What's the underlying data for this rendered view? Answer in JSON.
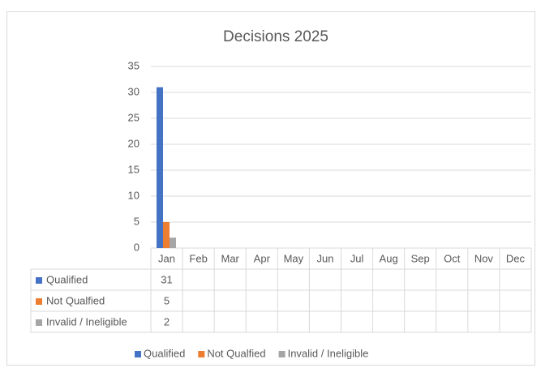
{
  "chart_data": {
    "type": "bar",
    "title": "Decisions 2025",
    "categories": [
      "Jan",
      "Feb",
      "Mar",
      "Apr",
      "May",
      "Jun",
      "Jul",
      "Aug",
      "Sep",
      "Oct",
      "Nov",
      "Dec"
    ],
    "series": [
      {
        "name": "Qualified",
        "color": "#4472c4",
        "values": [
          31,
          null,
          null,
          null,
          null,
          null,
          null,
          null,
          null,
          null,
          null,
          null
        ]
      },
      {
        "name": "Not Qualfied",
        "color": "#ed7d31",
        "values": [
          5,
          null,
          null,
          null,
          null,
          null,
          null,
          null,
          null,
          null,
          null,
          null
        ]
      },
      {
        "name": "Invalid / Ineligible",
        "color": "#a5a5a5",
        "values": [
          2,
          null,
          null,
          null,
          null,
          null,
          null,
          null,
          null,
          null,
          null,
          null
        ]
      }
    ],
    "ylim": [
      0,
      35
    ],
    "yticks": [
      0,
      5,
      10,
      15,
      20,
      25,
      30,
      35
    ],
    "grid": true,
    "legend": "bottom"
  }
}
